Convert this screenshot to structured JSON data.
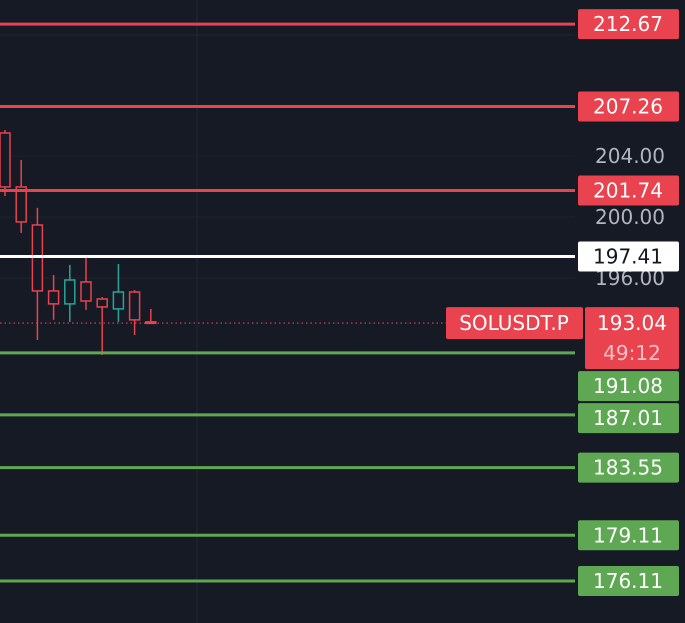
{
  "chart_data": {
    "type": "candlestick",
    "symbol": "SOLUSDT.P",
    "countdown": "49:12",
    "last_price": 193.04,
    "last_price_color": "#e8434e",
    "ylim": [
      173.35,
      214.25
    ],
    "yticks": [
      {
        "value": 196,
        "label": "196.00"
      },
      {
        "value": 200,
        "label": "200.00"
      },
      {
        "value": 204,
        "label": "204.00"
      }
    ],
    "up_color": "#26a69a",
    "down_color": "#e8434e",
    "open": [
      205.52,
      201.98,
      199.48,
      195.15,
      194.3,
      195.74,
      194.62,
      193.97,
      195.08,
      193.12
    ],
    "high": [
      205.72,
      203.75,
      200.6,
      196.2,
      196.86,
      197.32,
      194.75,
      196.92,
      195.21,
      193.97
    ],
    "low": [
      201.38,
      198.96,
      191.93,
      193.25,
      193.12,
      193.9,
      190.95,
      193.12,
      192.26,
      193.04
    ],
    "close": [
      201.98,
      199.68,
      195.15,
      194.3,
      195.87,
      194.49,
      194.1,
      195.08,
      193.25,
      193.04
    ],
    "levels": [
      {
        "value": 212.67,
        "color": "#e8434e"
      },
      {
        "value": 207.26,
        "color": "#e8434e"
      },
      {
        "value": 201.74,
        "color": "#e8434e"
      },
      {
        "value": 197.41,
        "color": "#ffffff"
      },
      {
        "value": 191.08,
        "color": "#5fa853"
      },
      {
        "value": 187.01,
        "color": "#5fa853"
      },
      {
        "value": 183.55,
        "color": "#5fa853"
      },
      {
        "value": 179.11,
        "color": "#5fa853"
      },
      {
        "value": 176.11,
        "color": "#5fa853"
      }
    ]
  }
}
